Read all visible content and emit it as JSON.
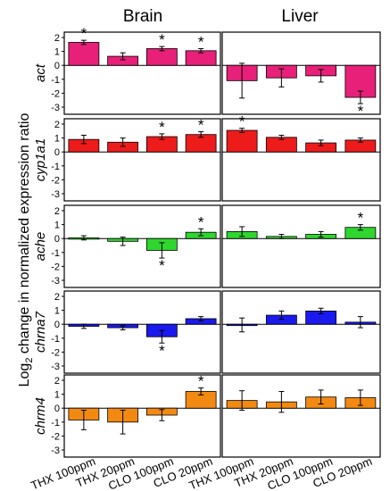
{
  "column_titles": [
    "Brain",
    "Liver"
  ],
  "y_axis_label": {
    "prefix": "Log",
    "sub": "2",
    "suffix": " change in normalized expression ratio"
  },
  "chart_data": {
    "type": "bar",
    "categories": [
      "THX 100ppm",
      "THX 20ppm",
      "CLO 100ppm",
      "CLO 20ppm"
    ],
    "ylim": [
      -3,
      2
    ],
    "yticks": [
      2,
      1,
      0,
      -1,
      -2,
      -3
    ],
    "panels": [
      {
        "gene": "act",
        "color": "#e8207a",
        "tissues": [
          {
            "tissue": "Brain",
            "values": [
              1.65,
              0.65,
              1.2,
              1.05
            ],
            "errors": [
              0.15,
              0.25,
              0.15,
              0.15
            ],
            "significant": [
              true,
              false,
              true,
              true
            ]
          },
          {
            "tissue": "Liver",
            "values": [
              -1.1,
              -0.9,
              -0.75,
              -2.3
            ],
            "errors": [
              1.25,
              0.65,
              0.45,
              0.45
            ],
            "significant": [
              false,
              false,
              false,
              true
            ]
          }
        ]
      },
      {
        "gene": "cyp1a1",
        "color": "#ee1b1b",
        "tissues": [
          {
            "tissue": "Brain",
            "values": [
              0.9,
              0.7,
              1.1,
              1.25
            ],
            "errors": [
              0.3,
              0.3,
              0.2,
              0.2
            ],
            "significant": [
              false,
              false,
              true,
              true
            ]
          },
          {
            "tissue": "Liver",
            "values": [
              1.55,
              1.05,
              0.65,
              0.85
            ],
            "errors": [
              0.15,
              0.15,
              0.2,
              0.15
            ],
            "significant": [
              true,
              false,
              false,
              false
            ]
          }
        ]
      },
      {
        "gene": "ache",
        "color": "#2ed62e",
        "tissues": [
          {
            "tissue": "Brain",
            "values": [
              0.05,
              -0.2,
              -0.85,
              0.45
            ],
            "errors": [
              0.15,
              0.3,
              0.55,
              0.25
            ],
            "significant": [
              false,
              false,
              true,
              true
            ]
          },
          {
            "tissue": "Liver",
            "values": [
              0.5,
              0.15,
              0.3,
              0.8
            ],
            "errors": [
              0.35,
              0.15,
              0.2,
              0.2
            ],
            "significant": [
              false,
              false,
              false,
              true
            ]
          }
        ]
      },
      {
        "gene": "chrna7",
        "color": "#1a1aee",
        "tissues": [
          {
            "tissue": "Brain",
            "values": [
              -0.15,
              -0.25,
              -0.9,
              0.4
            ],
            "errors": [
              0.15,
              0.15,
              0.45,
              0.15
            ],
            "significant": [
              false,
              false,
              true,
              false
            ]
          },
          {
            "tissue": "Liver",
            "values": [
              -0.05,
              0.65,
              0.95,
              0.15
            ],
            "errors": [
              0.5,
              0.3,
              0.2,
              0.4
            ],
            "significant": [
              false,
              false,
              false,
              false
            ]
          }
        ]
      },
      {
        "gene": "chrm4",
        "color": "#f28a12",
        "tissues": [
          {
            "tissue": "Brain",
            "values": [
              -0.85,
              -1.0,
              -0.5,
              1.2
            ],
            "errors": [
              0.7,
              0.85,
              0.4,
              0.25
            ],
            "significant": [
              false,
              false,
              false,
              true
            ]
          },
          {
            "tissue": "Liver",
            "values": [
              0.55,
              0.45,
              0.8,
              0.75
            ],
            "errors": [
              0.7,
              0.75,
              0.5,
              0.55
            ],
            "significant": [
              false,
              false,
              false,
              false
            ]
          }
        ]
      }
    ],
    "significance_marker": "*"
  }
}
